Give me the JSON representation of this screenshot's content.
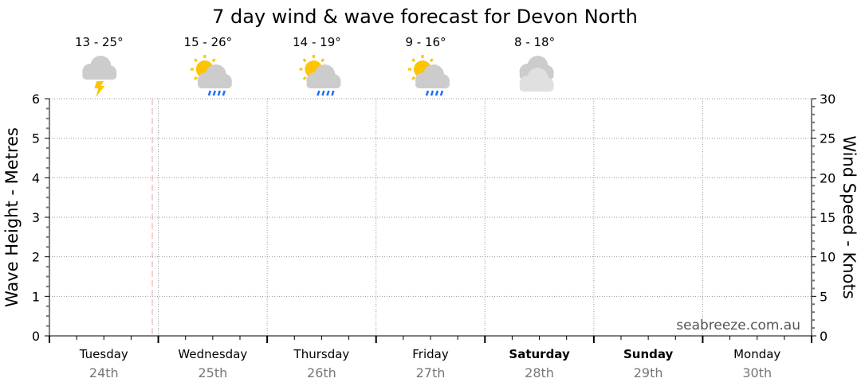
{
  "chart_data": {
    "type": "line",
    "title": "7 day wind & wave forecast for Devon North",
    "ylabel": "Wave Height - Metres",
    "y2label": "Wind Speed - Knots",
    "ylim": [
      0,
      6
    ],
    "y2lim": [
      0,
      30
    ],
    "yticks": [
      "0",
      "1",
      "2",
      "3",
      "4",
      "5",
      "6"
    ],
    "y2ticks": [
      "0",
      "5",
      "10",
      "15",
      "20",
      "25",
      "30"
    ],
    "grid": true,
    "watermark": "seabreeze.com.au",
    "days": [
      {
        "day": "Tuesday",
        "date": "24th",
        "bold": false,
        "temp": "13 - 25°",
        "icon": "thunderstorm-icon"
      },
      {
        "day": "Wednesday",
        "date": "25th",
        "bold": false,
        "temp": "15 - 26°",
        "icon": "sun-cloud-rain-icon"
      },
      {
        "day": "Thursday",
        "date": "26th",
        "bold": false,
        "temp": "14 - 19°",
        "icon": "sun-cloud-rain-icon"
      },
      {
        "day": "Friday",
        "date": "27th",
        "bold": false,
        "temp": "9 - 16°",
        "icon": "sun-cloud-rain-icon"
      },
      {
        "day": "Saturday",
        "date": "28th",
        "bold": true,
        "temp": "8 - 18°",
        "icon": "cloudy-icon"
      },
      {
        "day": "Sunday",
        "date": "29th",
        "bold": true
      },
      {
        "day": "Monday",
        "date": "30th",
        "bold": false
      }
    ],
    "series": [],
    "colors": {
      "now_line": "#f0a0a0",
      "grid": "#999999",
      "sun": "#ffc400",
      "cloud": "#cccccc",
      "rain": "#1a6cff"
    }
  }
}
